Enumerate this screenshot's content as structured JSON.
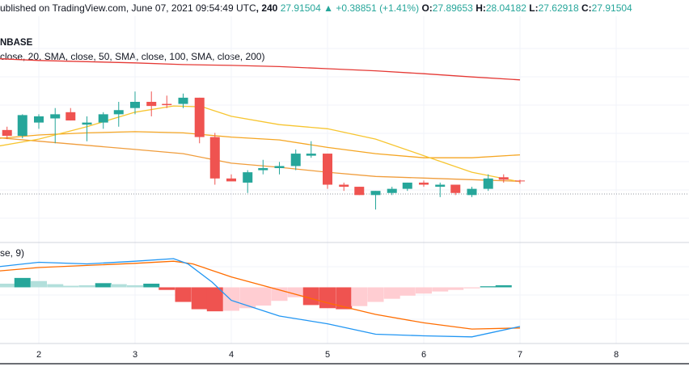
{
  "header": {
    "published": "ublished on TradingView.com, June 07, 2021 09:54:49 UTC",
    "interval": ", 240",
    "last_price": "27.91504",
    "change_arrow": "▲",
    "change": "+0.38851 (+1.41%)",
    "o_label": "O:",
    "o_value": "27.89653",
    "h_label": "H:",
    "h_value": "28.04182",
    "l_label": "L:",
    "l_value": "27.62918",
    "c_label": "C:",
    "c_value": "27.91504",
    "exchange": "NBASE",
    "ma_legend": "close, 20, SMA, close, 50, SMA, close, 100, SMA, close, 200)",
    "macd_legend": "se, 9)"
  },
  "colors": {
    "up": "#26a69a",
    "down": "#ef5350",
    "hist_up_strong": "#26a69a",
    "hist_up_weak": "#b2dfdb",
    "hist_down_strong": "#ef5350",
    "hist_down_weak": "#ffcdd2",
    "ma20": "#f7c530",
    "ma50": "#f5a623",
    "ma100": "#f09d3c",
    "ma200": "#e53935",
    "macd": "#2196f3",
    "signal": "#ff6d00",
    "grid": "#f0f3fa",
    "axis": "#131722"
  },
  "chart_data": [
    {
      "type": "candlestick",
      "x_axis_ticks": [
        "2",
        "3",
        "4",
        "5",
        "6",
        "7",
        "8",
        "2"
      ],
      "y_range": [
        27.0,
        31.0
      ],
      "grid": true,
      "candles": [
        {
          "x": 1.0,
          "o": 29.15,
          "h": 29.35,
          "l": 28.95,
          "c": 29.25
        },
        {
          "x": 1.17,
          "o": 29.25,
          "h": 29.7,
          "l": 29.2,
          "c": 29.45
        },
        {
          "x": 1.33,
          "o": 29.25,
          "h": 29.55,
          "l": 29.15,
          "c": 29.4
        },
        {
          "x": 1.5,
          "o": 29.42,
          "h": 29.6,
          "l": 29.3,
          "c": 29.52
        },
        {
          "x": 1.67,
          "o": 29.52,
          "h": 29.6,
          "l": 29.3,
          "c": 29.38
        },
        {
          "x": 1.83,
          "o": 29.38,
          "h": 29.9,
          "l": 29.32,
          "c": 29.88
        },
        {
          "x": 2.0,
          "o": 29.7,
          "h": 29.9,
          "l": 29.55,
          "c": 29.85
        },
        {
          "x": 2.17,
          "o": 29.8,
          "h": 30.05,
          "l": 29.2,
          "c": 29.9
        },
        {
          "x": 2.33,
          "o": 29.95,
          "h": 30.05,
          "l": 29.75,
          "c": 29.75
        },
        {
          "x": 2.5,
          "o": 29.65,
          "h": 29.85,
          "l": 29.25,
          "c": 29.7
        },
        {
          "x": 2.67,
          "o": 29.7,
          "h": 29.95,
          "l": 29.55,
          "c": 29.9
        },
        {
          "x": 2.83,
          "o": 29.9,
          "h": 30.2,
          "l": 29.6,
          "c": 30.0
        },
        {
          "x": 3.0,
          "o": 30.05,
          "h": 30.45,
          "l": 29.9,
          "c": 30.2
        },
        {
          "x": 3.17,
          "o": 30.2,
          "h": 30.45,
          "l": 29.85,
          "c": 30.1
        },
        {
          "x": 3.33,
          "o": 30.15,
          "h": 30.35,
          "l": 30.05,
          "c": 30.12
        },
        {
          "x": 3.5,
          "o": 30.15,
          "h": 30.4,
          "l": 30.05,
          "c": 30.3
        },
        {
          "x": 3.67,
          "o": 30.3,
          "h": 30.3,
          "l": 29.2,
          "c": 29.35
        },
        {
          "x": 3.83,
          "o": 29.35,
          "h": 29.45,
          "l": 28.2,
          "c": 28.35
        },
        {
          "x": 4.0,
          "o": 28.35,
          "h": 28.45,
          "l": 28.3,
          "c": 28.28
        },
        {
          "x": 4.17,
          "o": 28.25,
          "h": 28.55,
          "l": 28.0,
          "c": 28.5
        },
        {
          "x": 4.33,
          "o": 28.55,
          "h": 28.8,
          "l": 28.45,
          "c": 28.6
        },
        {
          "x": 4.5,
          "o": 28.6,
          "h": 28.75,
          "l": 28.45,
          "c": 28.65
        },
        {
          "x": 4.67,
          "o": 28.65,
          "h": 29.05,
          "l": 28.55,
          "c": 28.95
        },
        {
          "x": 4.83,
          "o": 28.9,
          "h": 29.25,
          "l": 28.85,
          "c": 28.95
        },
        {
          "x": 5.0,
          "o": 28.95,
          "h": 28.95,
          "l": 28.1,
          "c": 28.2
        },
        {
          "x": 5.17,
          "o": 28.2,
          "h": 28.25,
          "l": 28.05,
          "c": 28.15
        },
        {
          "x": 5.33,
          "o": 28.15,
          "h": 28.15,
          "l": 27.95,
          "c": 27.95
        },
        {
          "x": 5.5,
          "o": 27.95,
          "h": 28.05,
          "l": 27.6,
          "c": 28.05
        },
        {
          "x": 5.67,
          "o": 28.0,
          "h": 28.15,
          "l": 27.95,
          "c": 28.1
        },
        {
          "x": 5.83,
          "o": 28.1,
          "h": 28.25,
          "l": 28.05,
          "c": 28.25
        },
        {
          "x": 6.0,
          "o": 28.25,
          "h": 28.3,
          "l": 28.15,
          "c": 28.2
        },
        {
          "x": 6.17,
          "o": 28.15,
          "h": 28.25,
          "l": 27.9,
          "c": 28.2
        },
        {
          "x": 6.33,
          "o": 28.2,
          "h": 28.2,
          "l": 27.95,
          "c": 28.0
        },
        {
          "x": 6.5,
          "o": 27.95,
          "h": 28.15,
          "l": 27.9,
          "c": 28.1
        },
        {
          "x": 6.67,
          "o": 28.1,
          "h": 28.45,
          "l": 28.05,
          "c": 28.35
        },
        {
          "x": 6.83,
          "o": 28.38,
          "h": 28.45,
          "l": 28.25,
          "c": 28.32
        },
        {
          "x": 7.0,
          "o": 28.3,
          "h": 28.32,
          "l": 28.22,
          "c": 28.28
        }
      ],
      "ma20": [
        [
          0.6,
          28.75
        ],
        [
          1.0,
          28.95
        ],
        [
          1.5,
          29.1
        ],
        [
          2.0,
          29.3
        ],
        [
          2.5,
          29.6
        ],
        [
          3.0,
          29.95
        ],
        [
          3.4,
          30.1
        ],
        [
          3.7,
          30.08
        ],
        [
          4.0,
          29.85
        ],
        [
          4.5,
          29.65
        ],
        [
          5.0,
          29.55
        ],
        [
          5.5,
          29.3
        ],
        [
          6.0,
          28.9
        ],
        [
          6.5,
          28.5
        ],
        [
          7.0,
          28.27
        ]
      ],
      "ma50": [
        [
          0.6,
          29.1
        ],
        [
          1.0,
          29.2
        ],
        [
          1.5,
          29.3
        ],
        [
          2.0,
          29.4
        ],
        [
          2.5,
          29.45
        ],
        [
          3.0,
          29.48
        ],
        [
          3.5,
          29.45
        ],
        [
          4.0,
          29.35
        ],
        [
          4.5,
          29.28
        ],
        [
          5.0,
          29.1
        ],
        [
          5.5,
          28.95
        ],
        [
          6.0,
          28.85
        ],
        [
          6.5,
          28.85
        ],
        [
          7.0,
          28.92
        ]
      ],
      "ma100": [
        [
          0.6,
          29.55
        ],
        [
          1.0,
          29.45
        ],
        [
          1.5,
          29.35
        ],
        [
          2.0,
          29.25
        ],
        [
          2.5,
          29.15
        ],
        [
          3.0,
          29.05
        ],
        [
          3.5,
          28.95
        ],
        [
          4.0,
          28.72
        ],
        [
          4.5,
          28.62
        ],
        [
          5.0,
          28.5
        ],
        [
          5.5,
          28.4
        ],
        [
          6.0,
          28.36
        ],
        [
          6.5,
          28.32
        ],
        [
          7.0,
          28.28
        ]
      ],
      "ma200": [
        [
          0.6,
          31.35
        ],
        [
          1.0,
          31.3
        ],
        [
          1.5,
          31.25
        ],
        [
          2.0,
          31.2
        ],
        [
          2.5,
          31.17
        ],
        [
          3.0,
          31.14
        ],
        [
          3.5,
          31.1
        ],
        [
          4.0,
          31.08
        ],
        [
          4.5,
          31.05
        ],
        [
          5.0,
          31.0
        ],
        [
          5.5,
          30.95
        ],
        [
          6.0,
          30.88
        ],
        [
          6.5,
          30.8
        ],
        [
          7.0,
          30.73
        ]
      ]
    },
    {
      "type": "bar",
      "title": "MACD",
      "y_range": [
        -1.0,
        0.55
      ],
      "histogram": [
        {
          "x": 0.83,
          "v": 0.18,
          "c": "hist_up_weak"
        },
        {
          "x": 1.0,
          "v": 0.2,
          "c": "hist_up_weak"
        },
        {
          "x": 1.17,
          "v": 0.16,
          "c": "hist_up_weak"
        },
        {
          "x": 1.33,
          "v": 0.16,
          "c": "hist_up_weak"
        },
        {
          "x": 1.5,
          "v": 0.12,
          "c": "hist_up_weak"
        },
        {
          "x": 1.67,
          "v": 0.07,
          "c": "hist_up_weak"
        },
        {
          "x": 1.83,
          "v": 0.18,
          "c": "hist_up_strong"
        },
        {
          "x": 2.0,
          "v": 0.12,
          "c": "hist_up_weak"
        },
        {
          "x": 2.17,
          "v": 0.06,
          "c": "hist_up_weak"
        },
        {
          "x": 2.33,
          "v": 0.03,
          "c": "hist_up_weak"
        },
        {
          "x": 2.5,
          "v": 0.04,
          "c": "hist_up_weak"
        },
        {
          "x": 2.67,
          "v": 0.08,
          "c": "hist_up_strong"
        },
        {
          "x": 2.83,
          "v": 0.06,
          "c": "hist_up_weak"
        },
        {
          "x": 3.0,
          "v": 0.04,
          "c": "hist_up_weak"
        },
        {
          "x": 3.17,
          "v": 0.07,
          "c": "hist_up_strong"
        },
        {
          "x": 3.33,
          "v": -0.05,
          "c": "hist_down_strong"
        },
        {
          "x": 3.5,
          "v": -0.28,
          "c": "hist_down_strong"
        },
        {
          "x": 3.67,
          "v": -0.42,
          "c": "hist_down_strong"
        },
        {
          "x": 3.83,
          "v": -0.46,
          "c": "hist_down_strong"
        },
        {
          "x": 4.0,
          "v": -0.45,
          "c": "hist_down_weak"
        },
        {
          "x": 4.17,
          "v": -0.4,
          "c": "hist_down_weak"
        },
        {
          "x": 4.33,
          "v": -0.35,
          "c": "hist_down_weak"
        },
        {
          "x": 4.5,
          "v": -0.26,
          "c": "hist_down_weak"
        },
        {
          "x": 4.67,
          "v": -0.19,
          "c": "hist_down_weak"
        },
        {
          "x": 4.83,
          "v": -0.34,
          "c": "hist_down_strong"
        },
        {
          "x": 5.0,
          "v": -0.4,
          "c": "hist_down_strong"
        },
        {
          "x": 5.17,
          "v": -0.42,
          "c": "hist_down_strong"
        },
        {
          "x": 5.33,
          "v": -0.36,
          "c": "hist_down_weak"
        },
        {
          "x": 5.5,
          "v": -0.28,
          "c": "hist_down_weak"
        },
        {
          "x": 5.67,
          "v": -0.22,
          "c": "hist_down_weak"
        },
        {
          "x": 5.83,
          "v": -0.16,
          "c": "hist_down_weak"
        },
        {
          "x": 6.0,
          "v": -0.12,
          "c": "hist_down_weak"
        },
        {
          "x": 6.17,
          "v": -0.08,
          "c": "hist_down_weak"
        },
        {
          "x": 6.33,
          "v": -0.05,
          "c": "hist_down_weak"
        },
        {
          "x": 6.5,
          "v": -0.02,
          "c": "hist_down_weak"
        },
        {
          "x": 6.67,
          "v": 0.02,
          "c": "hist_up_strong"
        },
        {
          "x": 6.83,
          "v": 0.04,
          "c": "hist_up_strong"
        }
      ],
      "macd": [
        [
          0.6,
          0.3
        ],
        [
          1.0,
          0.42
        ],
        [
          1.5,
          0.38
        ],
        [
          2.0,
          0.48
        ],
        [
          2.5,
          0.45
        ],
        [
          3.0,
          0.5
        ],
        [
          3.4,
          0.55
        ],
        [
          3.55,
          0.45
        ],
        [
          3.8,
          0.1
        ],
        [
          4.0,
          -0.25
        ],
        [
          4.5,
          -0.55
        ],
        [
          5.0,
          -0.7
        ],
        [
          5.5,
          -0.9
        ],
        [
          6.0,
          -0.93
        ],
        [
          6.5,
          -0.95
        ],
        [
          7.0,
          -0.75
        ]
      ],
      "signal": [
        [
          0.6,
          0.1
        ],
        [
          1.0,
          0.22
        ],
        [
          1.5,
          0.3
        ],
        [
          2.0,
          0.38
        ],
        [
          2.5,
          0.42
        ],
        [
          3.0,
          0.46
        ],
        [
          3.4,
          0.5
        ],
        [
          3.6,
          0.45
        ],
        [
          4.0,
          0.2
        ],
        [
          4.5,
          -0.05
        ],
        [
          5.0,
          -0.3
        ],
        [
          5.5,
          -0.52
        ],
        [
          6.0,
          -0.68
        ],
        [
          6.5,
          -0.8
        ],
        [
          7.0,
          -0.78
        ]
      ]
    }
  ]
}
